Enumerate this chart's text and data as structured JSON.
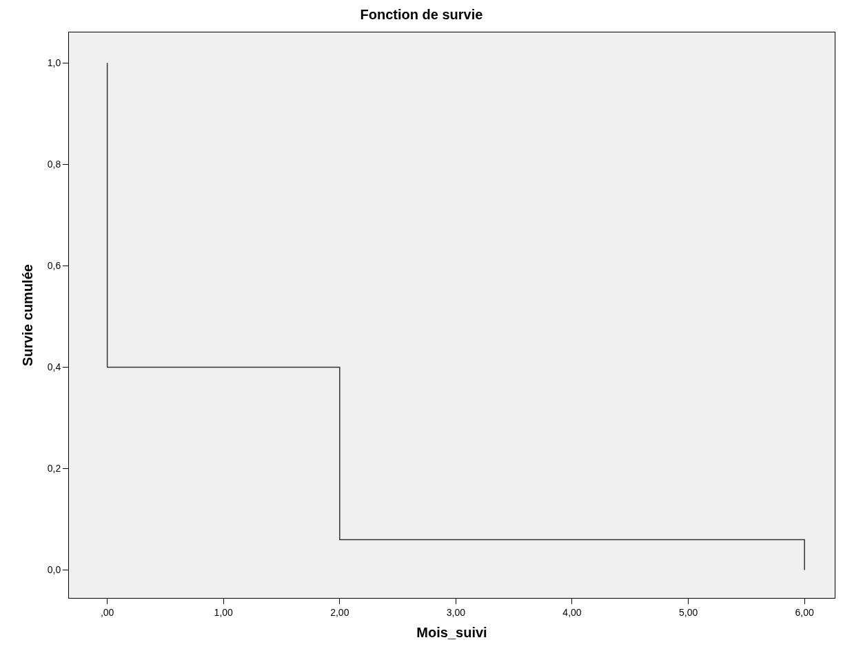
{
  "chart_data": {
    "type": "step",
    "title": "Fonction de survie",
    "xlabel": "Mois_suivi",
    "ylabel": "Survie cumulée",
    "x": [
      0,
      0,
      2,
      6,
      6
    ],
    "series": [
      {
        "color": "#333333",
        "values": [
          1,
          0.4,
          0.06,
          0.06,
          0
        ]
      }
    ],
    "xlim": [
      -0.33,
      6.26
    ],
    "ylim": [
      -0.055,
      1.06
    ],
    "xticks": [
      {
        "value": 0,
        "label": ",00"
      },
      {
        "value": 1,
        "label": "1,00"
      },
      {
        "value": 2,
        "label": "2,00"
      },
      {
        "value": 3,
        "label": "3,00"
      },
      {
        "value": 4,
        "label": "4,00"
      },
      {
        "value": 5,
        "label": "5,00"
      },
      {
        "value": 6,
        "label": "6,00"
      }
    ],
    "yticks": [
      {
        "value": 0,
        "label": "0,0"
      },
      {
        "value": 0.2,
        "label": "0,2"
      },
      {
        "value": 0.4,
        "label": "0,4"
      },
      {
        "value": 0.6,
        "label": "0,6"
      },
      {
        "value": 0.8,
        "label": "0,8"
      },
      {
        "value": 1,
        "label": "1,0"
      }
    ],
    "grid": false,
    "marker": "none",
    "line_style": "solid"
  }
}
